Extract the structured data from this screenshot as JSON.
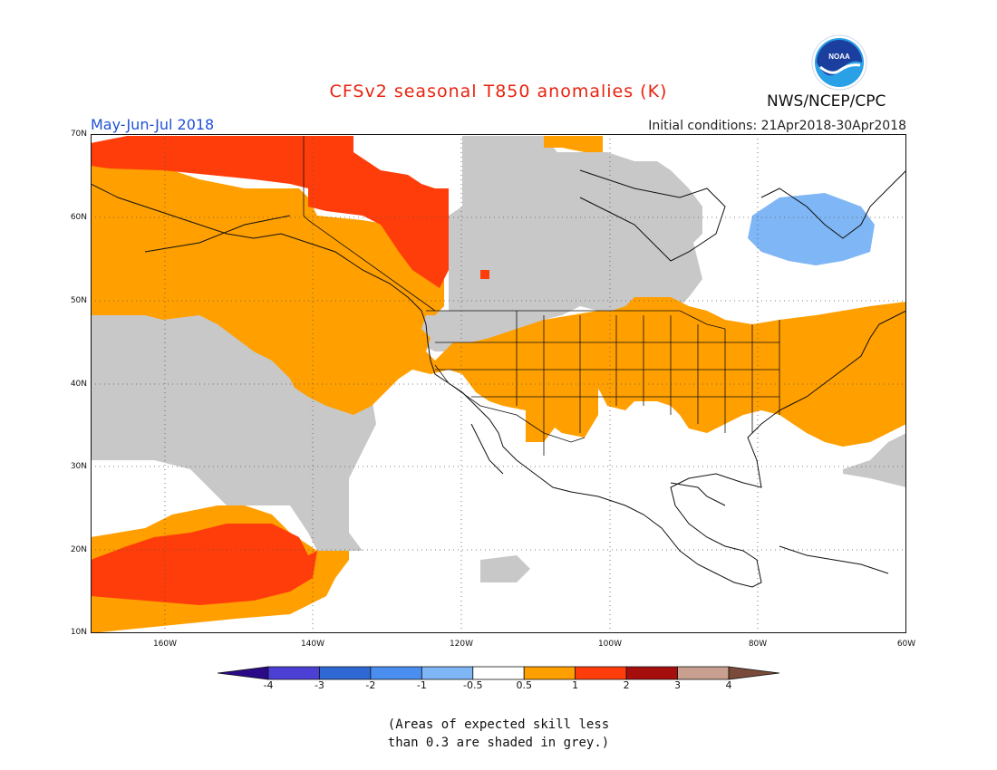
{
  "header": {
    "title": "CFSv2 seasonal T850 anomalies (K)",
    "season": "May-Jun-Jul 2018",
    "initial_conditions": "Initial conditions: 21Apr2018-30Apr2018",
    "agency": "NWS/NCEP/CPC",
    "logo_text": "NOAA"
  },
  "axes": {
    "lat_labels": [
      "70N",
      "60N",
      "50N",
      "40N",
      "30N",
      "20N",
      "10N"
    ],
    "lon_labels": [
      "160W",
      "140W",
      "120W",
      "100W",
      "80W",
      "60W"
    ]
  },
  "colorbar": {
    "ticks": [
      "-4",
      "-3",
      "-2",
      "-1",
      "-0.5",
      "0.5",
      "1",
      "2",
      "3",
      "4"
    ],
    "colors": [
      "#2b0a8a",
      "#4b3fd4",
      "#2f67d3",
      "#4a8ff0",
      "#7fb6f5",
      "#ffffff",
      "#ff9f00",
      "#ff3d0b",
      "#a60d0d",
      "#c9a090",
      "#7a4a3a"
    ]
  },
  "map_colors": {
    "grey_low_skill": "#c8c8c8",
    "warm_0_5_to_1": "#ff9f00",
    "warm_1_to_2": "#ff3d0b",
    "cool_neg1_to_neg0_5": "#7fb6f5"
  },
  "note": {
    "line1": "(Areas of expected skill less",
    "line2": "than 0.3 are shaded in grey.)"
  }
}
